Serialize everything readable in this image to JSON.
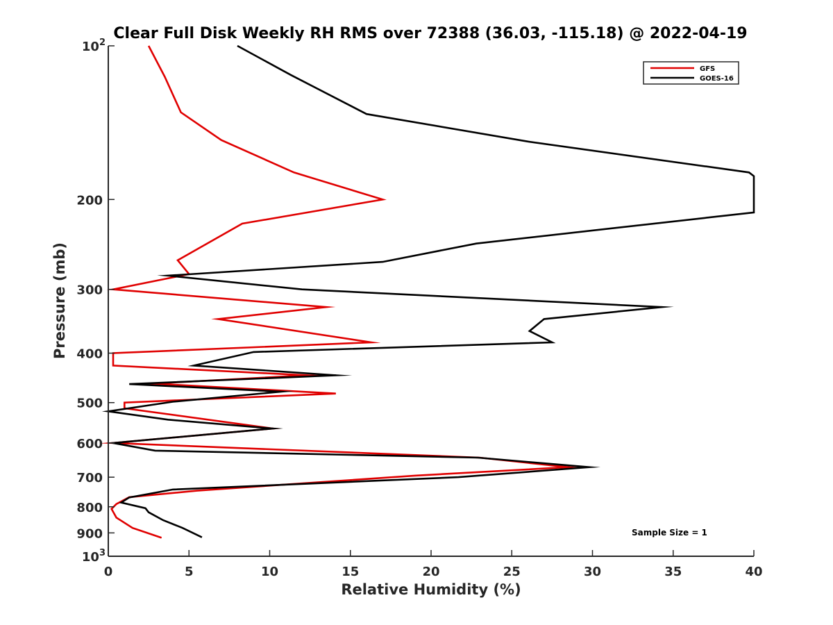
{
  "chart_data": {
    "type": "line",
    "title": "Clear Full Disk Weekly RH RMS over 72388 (36.03, -115.18) @ 2022-04-19",
    "xlabel": "Relative Humidity (%)",
    "ylabel": "Pressure (mb)",
    "xlim": [
      0,
      40
    ],
    "ylim": [
      100,
      1000
    ],
    "yscale": "log",
    "y_reversed": true,
    "grid": false,
    "legend_position": "top-right",
    "x_ticks": [
      "0",
      "5",
      "10",
      "15",
      "20",
      "25",
      "30",
      "35",
      "40"
    ],
    "y_ticks": [
      {
        "value": 100,
        "label": "10",
        "sup": "2"
      },
      {
        "value": 200,
        "label": "200",
        "sup": ""
      },
      {
        "value": 300,
        "label": "300",
        "sup": ""
      },
      {
        "value": 400,
        "label": "400",
        "sup": ""
      },
      {
        "value": 500,
        "label": "500",
        "sup": ""
      },
      {
        "value": 600,
        "label": "600",
        "sup": ""
      },
      {
        "value": 700,
        "label": "700",
        "sup": ""
      },
      {
        "value": 800,
        "label": "800",
        "sup": ""
      },
      {
        "value": 900,
        "label": "900",
        "sup": ""
      },
      {
        "value": 1000,
        "label": "10",
        "sup": "3"
      }
    ],
    "annotation": "Sample Size = 1",
    "series": [
      {
        "name": "GFS",
        "color": "#e00000",
        "points": [
          [
            2.5,
            100
          ],
          [
            3.5,
            115
          ],
          [
            4.5,
            135
          ],
          [
            7.0,
            153
          ],
          [
            11.5,
            177
          ],
          [
            17.0,
            200
          ],
          [
            8.3,
            223
          ],
          [
            4.3,
            263
          ],
          [
            5.0,
            280
          ],
          [
            0.3,
            300
          ],
          [
            13.5,
            325
          ],
          [
            6.8,
            343
          ],
          [
            16.3,
            381
          ],
          [
            0.3,
            400
          ],
          [
            0.3,
            423
          ],
          [
            12.3,
            442
          ],
          [
            2.8,
            459
          ],
          [
            14.1,
            480
          ],
          [
            1.0,
            500
          ],
          [
            1.0,
            513
          ],
          [
            10.2,
            562
          ],
          [
            0.3,
            600
          ],
          [
            23.0,
            641
          ],
          [
            28.5,
            669
          ],
          [
            19.0,
            695
          ],
          [
            12.5,
            718
          ],
          [
            5.5,
            744
          ],
          [
            1.3,
            766
          ],
          [
            0.5,
            790
          ],
          [
            0.2,
            808
          ],
          [
            0.5,
            840
          ],
          [
            1.5,
            880
          ],
          [
            3.3,
            920
          ]
        ]
      },
      {
        "name": "GOES-16",
        "color": "#000000",
        "points": [
          [
            8.0,
            100
          ],
          [
            11.3,
            114
          ],
          [
            16.0,
            136
          ],
          [
            26.0,
            154
          ],
          [
            39.7,
            177
          ],
          [
            40.0,
            180
          ],
          [
            40.0,
            212
          ],
          [
            22.8,
            244
          ],
          [
            17.0,
            265
          ],
          [
            3.7,
            282
          ],
          [
            12.0,
            300
          ],
          [
            34.3,
            325
          ],
          [
            27.0,
            343
          ],
          [
            26.1,
            362
          ],
          [
            27.5,
            381
          ],
          [
            9.0,
            398
          ],
          [
            5.3,
            423
          ],
          [
            14.1,
            442
          ],
          [
            1.3,
            460
          ],
          [
            10.7,
            476
          ],
          [
            4.0,
            498
          ],
          [
            0.0,
            520
          ],
          [
            3.7,
            540
          ],
          [
            10.2,
            562
          ],
          [
            0.3,
            600
          ],
          [
            2.9,
            621
          ],
          [
            22.9,
            641
          ],
          [
            29.8,
            669
          ],
          [
            21.7,
            700
          ],
          [
            4.0,
            740
          ],
          [
            1.3,
            767
          ],
          [
            0.8,
            785
          ],
          [
            2.3,
            805
          ],
          [
            2.5,
            820
          ],
          [
            3.4,
            850
          ],
          [
            4.6,
            880
          ],
          [
            5.8,
            918
          ]
        ]
      }
    ]
  }
}
